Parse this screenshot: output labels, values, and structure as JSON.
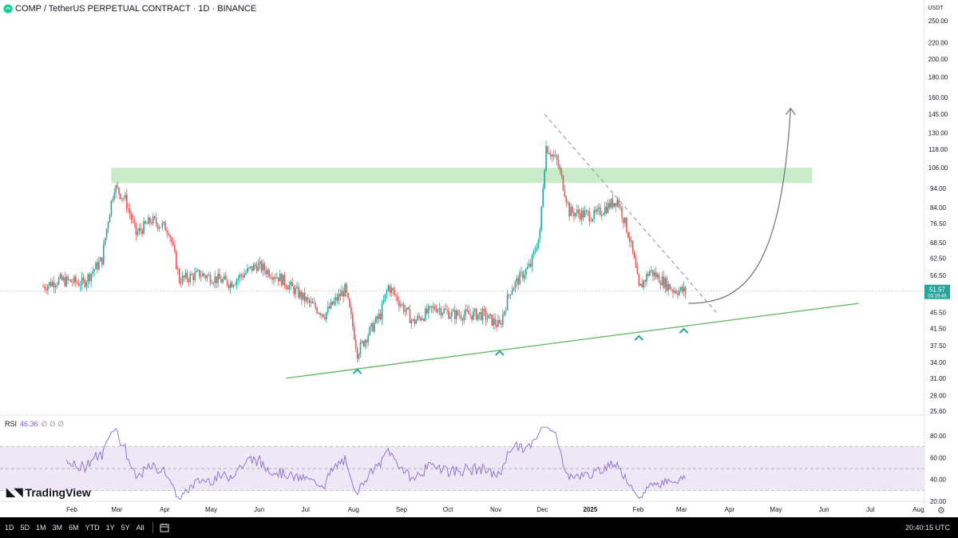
{
  "header": {
    "title": "COMP / TetherUS PERPETUAL CONTRACT · 1D · BINANCE",
    "currency": "USDT"
  },
  "price_axis": {
    "labels": [
      "250.00",
      "220.00",
      "200.00",
      "180.00",
      "160.00",
      "145.00",
      "130.00",
      "118.00",
      "106.00",
      "94.00",
      "84.00",
      "76.50",
      "68.50",
      "62.50",
      "56.50",
      "51.57",
      "45.50",
      "41.50",
      "37.50",
      "34.00",
      "31.00",
      "28.00",
      "25.60"
    ],
    "current_price": "51.57",
    "countdown": "03:19:45",
    "current_color": "#26a69a"
  },
  "time_axis": {
    "labels": [
      "Feb",
      "Mar",
      "Apr",
      "May",
      "Jun",
      "Jul",
      "Aug",
      "Sep",
      "Oct",
      "Nov",
      "Dec",
      "2025",
      "Feb",
      "Mar",
      "Apr",
      "May",
      "Jun",
      "Jul",
      "Aug"
    ]
  },
  "rsi": {
    "name": "RSI",
    "value": "46.36",
    "extra": "∅ ∅ ∅",
    "axis_labels": [
      "80.00",
      "60.00",
      "40.00",
      "20.00"
    ]
  },
  "branding": {
    "name": "TradingView"
  },
  "bottom_toolbar": {
    "timeframes": [
      "1D",
      "5D",
      "1M",
      "3M",
      "6M",
      "YTD",
      "1Y",
      "5Y",
      "All"
    ],
    "time": "20:40:15 UTC"
  },
  "colors": {
    "up": "#26a69a",
    "down": "#ef5350",
    "zone": "#b7e4b7",
    "trendline": "#66bb6a",
    "rsi_line": "#9575cd",
    "rsi_band": "#ede7f6",
    "marker": "#26a69a"
  },
  "chart_data": {
    "type": "candlestick",
    "title": "COMP / TetherUS PERPETUAL CONTRACT · 1D · BINANCE",
    "price_scale": "log",
    "ylim": [
      25.6,
      250
    ],
    "current_price": 51.57,
    "x": [
      "2024-01",
      "2024-02",
      "2024-03",
      "2024-04",
      "2024-05",
      "2024-06",
      "2024-07",
      "2024-08",
      "2024-09",
      "2024-10",
      "2024-11",
      "2024-12",
      "2025-01",
      "2025-02",
      "2025-03"
    ],
    "close_path": [
      {
        "date": "2024-01-15",
        "close": 53
      },
      {
        "date": "2024-01-25",
        "close": 55
      },
      {
        "date": "2024-02-10",
        "close": 54
      },
      {
        "date": "2024-02-22",
        "close": 62
      },
      {
        "date": "2024-03-01",
        "close": 95
      },
      {
        "date": "2024-03-08",
        "close": 88
      },
      {
        "date": "2024-03-15",
        "close": 72
      },
      {
        "date": "2024-03-25",
        "close": 78
      },
      {
        "date": "2024-04-05",
        "close": 74
      },
      {
        "date": "2024-04-12",
        "close": 55
      },
      {
        "date": "2024-04-25",
        "close": 57
      },
      {
        "date": "2024-05-15",
        "close": 54
      },
      {
        "date": "2024-06-01",
        "close": 60
      },
      {
        "date": "2024-06-15",
        "close": 56
      },
      {
        "date": "2024-07-05",
        "close": 48
      },
      {
        "date": "2024-07-15",
        "close": 45
      },
      {
        "date": "2024-07-28",
        "close": 52
      },
      {
        "date": "2024-08-05",
        "close": 36
      },
      {
        "date": "2024-08-20",
        "close": 45
      },
      {
        "date": "2024-08-25",
        "close": 53
      },
      {
        "date": "2024-09-10",
        "close": 43
      },
      {
        "date": "2024-09-25",
        "close": 47
      },
      {
        "date": "2024-10-05",
        "close": 45
      },
      {
        "date": "2024-10-25",
        "close": 45
      },
      {
        "date": "2024-11-05",
        "close": 42
      },
      {
        "date": "2024-11-12",
        "close": 52
      },
      {
        "date": "2024-11-25",
        "close": 60
      },
      {
        "date": "2024-12-01",
        "close": 72
      },
      {
        "date": "2024-12-05",
        "close": 120
      },
      {
        "date": "2024-12-12",
        "close": 110
      },
      {
        "date": "2024-12-20",
        "close": 82
      },
      {
        "date": "2025-01-05",
        "close": 80
      },
      {
        "date": "2025-01-20",
        "close": 88
      },
      {
        "date": "2025-01-28",
        "close": 70
      },
      {
        "date": "2025-02-03",
        "close": 52
      },
      {
        "date": "2025-02-10",
        "close": 58
      },
      {
        "date": "2025-02-25",
        "close": 52
      },
      {
        "date": "2025-03-05",
        "close": 51.57
      }
    ],
    "overlays": {
      "resistance_zone": [
        97,
        106
      ],
      "support_trendline": [
        {
          "date": "2024-06-20",
          "price": 31
        },
        {
          "date": "2025-06-25",
          "price": 48
        }
      ],
      "descending_trendline": [
        {
          "date": "2024-12-04",
          "price": 145
        },
        {
          "date": "2025-03-25",
          "price": 45.5
        }
      ],
      "projection_arrow_target": 150,
      "markers": [
        "2024-08-05",
        "2024-11-05",
        "2025-02-03",
        "2025-03-04"
      ]
    },
    "rsi": {
      "period_value": 46.36,
      "levels": [
        30,
        50,
        70
      ],
      "ylim": [
        20,
        90
      ]
    }
  }
}
